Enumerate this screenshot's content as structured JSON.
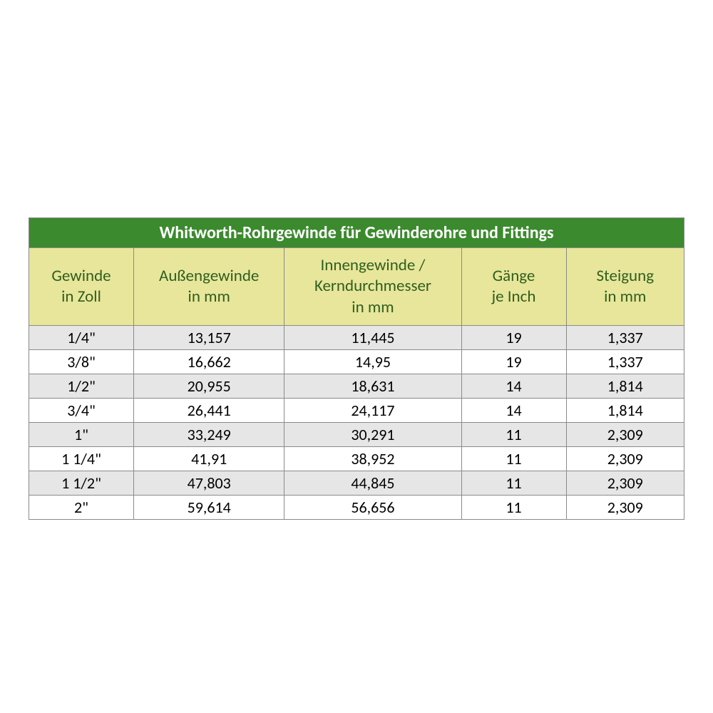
{
  "table": {
    "title": "Whitworth-Rohrgewinde für Gewinderohre und Fittings",
    "columns": [
      {
        "line1": "Gewinde",
        "line2": "in Zoll"
      },
      {
        "line1": "Außengewinde",
        "line2": "in mm"
      },
      {
        "line1": "Innengewinde /",
        "line2": "Kerndurchmesser",
        "line3": "in mm"
      },
      {
        "line1": "Gänge",
        "line2": "je Inch"
      },
      {
        "line1": "Steigung",
        "line2": "in mm"
      }
    ],
    "rows": [
      [
        "1/4\"",
        "13,157",
        "11,445",
        "19",
        "1,337"
      ],
      [
        "3/8\"",
        "16,662",
        "14,95",
        "19",
        "1,337"
      ],
      [
        "1/2\"",
        "20,955",
        "18,631",
        "14",
        "1,814"
      ],
      [
        "3/4\"",
        "26,441",
        "24,117",
        "14",
        "1,814"
      ],
      [
        "1\"",
        "33,249",
        "30,291",
        "11",
        "2,309"
      ],
      [
        "1 1/4\"",
        "41,91",
        "38,952",
        "11",
        "2,309"
      ],
      [
        "1 1/2\"",
        "47,803",
        "44,845",
        "11",
        "2,309"
      ],
      [
        "2\"",
        "59,614",
        "56,656",
        "11",
        "2,309"
      ]
    ],
    "style": {
      "title_bg": "#3c8a2e",
      "title_color": "#ffffff",
      "header_bg": "#e8e69b",
      "header_color": "#2f5f1e",
      "row_odd_bg": "#e6e6e6",
      "row_even_bg": "#ffffff",
      "border_color": "#8a8a8a",
      "title_fontsize": 24,
      "header_fontsize": 23,
      "cell_fontsize": 22,
      "col_widths_pct": [
        16,
        23,
        27,
        16,
        18
      ]
    }
  }
}
